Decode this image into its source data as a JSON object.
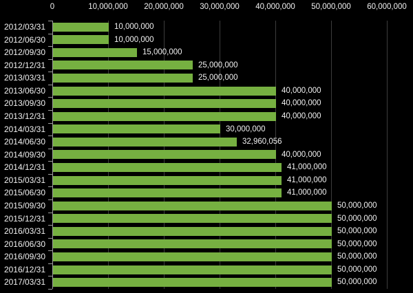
{
  "chart_data": {
    "type": "bar",
    "orientation": "horizontal",
    "title": "",
    "xlabel": "",
    "ylabel": "",
    "legend": null,
    "grid": true,
    "categories": [
      "2012/03/31",
      "2012/06/30",
      "2012/09/30",
      "2012/12/31",
      "2013/03/31",
      "2013/06/30",
      "2013/09/30",
      "2013/12/31",
      "2014/03/31",
      "2014/06/30",
      "2014/09/30",
      "2014/12/31",
      "2015/03/31",
      "2015/06/30",
      "2015/09/30",
      "2015/12/31",
      "2016/03/31",
      "2016/06/30",
      "2016/09/30",
      "2016/12/31",
      "2017/03/31"
    ],
    "values": [
      10000000,
      10000000,
      15000000,
      25000000,
      25000000,
      40000000,
      40000000,
      40000000,
      30000000,
      32960056,
      40000000,
      41000000,
      41000000,
      41000000,
      50000000,
      50000000,
      50000000,
      50000000,
      50000000,
      50000000,
      50000000
    ],
    "value_labels": [
      "10,000,000",
      "10,000,000",
      "15,000,000",
      "25,000,000",
      "25,000,000",
      "40,000,000",
      "40,000,000",
      "40,000,000",
      "30,000,000",
      "32,960,056",
      "40,000,000",
      "41,000,000",
      "41,000,000",
      "41,000,000",
      "50,000,000",
      "50,000,000",
      "50,000,000",
      "50,000,000",
      "50,000,000",
      "50,000,000",
      "50,000,000"
    ],
    "value_label_position": "outside-end",
    "x_axis": {
      "position": "top",
      "min": 0,
      "max": 60000000,
      "tick_step": 10000000,
      "tick_labels": [
        "0",
        "10,000,000",
        "20,000,000",
        "30,000,000",
        "40,000,000",
        "50,000,000",
        "60,000,000"
      ]
    },
    "colors": {
      "background": "#000000",
      "bar": "#76b041",
      "gridline": "#3d3d3d",
      "axis_line": "#9f9f9f",
      "text": "#f1f1f1"
    }
  }
}
